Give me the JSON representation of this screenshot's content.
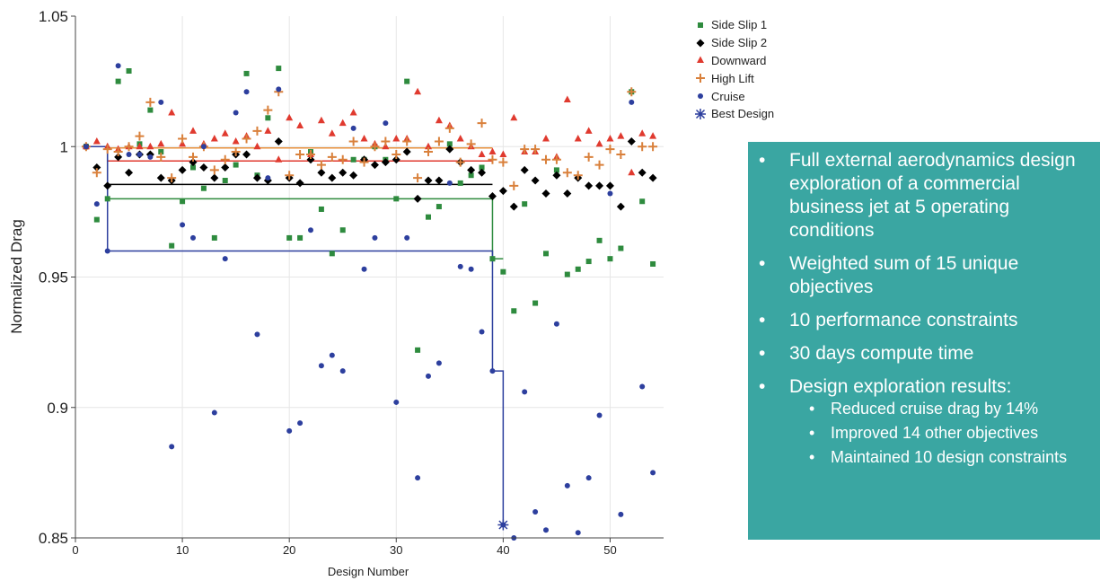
{
  "chart_data": {
    "type": "scatter",
    "xlabel": "Design Number",
    "ylabel": "Normalized Drag",
    "xlim": [
      0,
      55
    ],
    "ylim": [
      0.85,
      1.05
    ],
    "x_ticks": [
      "0",
      "10",
      "20",
      "30",
      "40",
      "50"
    ],
    "y_ticks": [
      "0.85",
      "0.9",
      "0.95",
      "1",
      "1.05"
    ],
    "grid": true,
    "legend_position": "top-right",
    "series": [
      {
        "name": "Side Slip 1",
        "marker": "square",
        "color": "#2e8b3e",
        "x": [
          1,
          2,
          3,
          4,
          5,
          6,
          7,
          8,
          9,
          10,
          11,
          12,
          13,
          14,
          15,
          16,
          17,
          18,
          19,
          20,
          21,
          22,
          23,
          24,
          25,
          26,
          27,
          28,
          29,
          30,
          31,
          32,
          33,
          34,
          35,
          36,
          37,
          38,
          39,
          40,
          41,
          42,
          43,
          44,
          45,
          46,
          47,
          48,
          49,
          50,
          51,
          52,
          53,
          54
        ],
        "y": [
          1.0,
          0.972,
          0.98,
          1.025,
          1.029,
          1.001,
          1.014,
          0.998,
          0.962,
          0.979,
          0.992,
          0.984,
          0.965,
          0.987,
          0.993,
          1.028,
          0.989,
          1.011,
          1.03,
          0.965,
          0.965,
          0.998,
          0.976,
          0.959,
          0.968,
          0.995,
          0.995,
          1.0,
          0.995,
          0.98,
          1.025,
          0.922,
          0.973,
          0.977,
          1.001,
          0.986,
          0.989,
          0.992,
          0.957,
          0.952,
          0.937,
          0.978,
          0.94,
          0.959,
          0.991,
          0.951,
          0.953,
          0.956,
          0.964,
          0.957,
          0.961,
          1.021,
          0.979,
          0.955
        ]
      },
      {
        "name": "Side Slip 2",
        "marker": "diamond",
        "color": "#000000",
        "x": [
          1,
          2,
          3,
          4,
          5,
          6,
          7,
          8,
          9,
          10,
          11,
          12,
          13,
          14,
          15,
          16,
          17,
          18,
          19,
          20,
          21,
          22,
          23,
          24,
          25,
          26,
          27,
          28,
          29,
          30,
          31,
          32,
          33,
          34,
          35,
          36,
          37,
          38,
          39,
          40,
          41,
          42,
          43,
          44,
          45,
          46,
          47,
          48,
          49,
          50,
          51,
          52,
          53,
          54
        ],
        "y": [
          1.0,
          0.992,
          0.985,
          0.996,
          0.99,
          0.997,
          0.997,
          0.988,
          0.987,
          0.991,
          0.994,
          0.992,
          0.988,
          0.992,
          0.997,
          0.997,
          0.988,
          0.987,
          1.002,
          0.988,
          0.986,
          0.995,
          0.99,
          0.988,
          0.99,
          0.989,
          0.995,
          0.993,
          0.994,
          0.995,
          0.998,
          0.98,
          0.987,
          0.987,
          0.999,
          0.994,
          0.991,
          0.99,
          0.981,
          0.983,
          0.977,
          0.991,
          0.987,
          0.982,
          0.989,
          0.982,
          0.988,
          0.985,
          0.985,
          0.985,
          0.977,
          1.002,
          0.99,
          0.988
        ]
      },
      {
        "name": "Downward",
        "marker": "triangle",
        "color": "#e03a2f",
        "x": [
          1,
          2,
          3,
          4,
          5,
          6,
          7,
          8,
          9,
          10,
          11,
          12,
          13,
          14,
          15,
          16,
          17,
          18,
          19,
          20,
          21,
          22,
          23,
          24,
          25,
          26,
          27,
          28,
          29,
          30,
          31,
          32,
          33,
          34,
          35,
          36,
          37,
          38,
          39,
          40,
          41,
          42,
          43,
          44,
          45,
          46,
          47,
          48,
          49,
          50,
          51,
          52,
          53,
          54
        ],
        "y": [
          1.0,
          1.002,
          1.0,
          0.999,
          1.0,
          1.0,
          1.0,
          1.001,
          1.013,
          1.001,
          1.006,
          1.001,
          1.003,
          1.005,
          1.002,
          1.004,
          1.0,
          1.006,
          0.995,
          1.011,
          1.008,
          0.997,
          1.01,
          1.005,
          1.009,
          1.013,
          1.003,
          1.001,
          1.0,
          1.003,
          1.003,
          1.021,
          1.0,
          1.01,
          1.008,
          1.003,
          1.0,
          0.997,
          0.998,
          0.997,
          1.011,
          0.998,
          0.998,
          1.003,
          0.996,
          1.018,
          1.003,
          1.006,
          1.001,
          1.003,
          1.004,
          0.99,
          1.005,
          1.004
        ]
      },
      {
        "name": "High Lift",
        "marker": "plus",
        "color": "#d9803b",
        "x": [
          1,
          2,
          3,
          4,
          5,
          6,
          7,
          8,
          9,
          10,
          11,
          12,
          13,
          14,
          15,
          16,
          17,
          18,
          19,
          20,
          21,
          22,
          23,
          24,
          25,
          26,
          27,
          28,
          29,
          30,
          31,
          32,
          33,
          34,
          35,
          36,
          37,
          38,
          39,
          40,
          41,
          42,
          43,
          44,
          45,
          46,
          47,
          48,
          49,
          50,
          51,
          52,
          53,
          54
        ],
        "y": [
          1.0,
          0.99,
          0.999,
          0.998,
          1.0,
          1.004,
          1.017,
          0.996,
          0.988,
          1.003,
          0.996,
          1.0,
          0.991,
          0.995,
          0.998,
          1.003,
          1.006,
          1.014,
          1.021,
          0.989,
          0.997,
          0.997,
          0.993,
          0.996,
          0.995,
          1.002,
          0.994,
          1.0,
          1.002,
          0.997,
          1.002,
          0.988,
          0.998,
          1.002,
          1.007,
          0.994,
          1.001,
          1.009,
          0.995,
          0.994,
          0.985,
          0.999,
          0.999,
          0.995,
          0.995,
          0.99,
          0.989,
          0.996,
          0.993,
          0.999,
          0.997,
          1.021,
          1.0,
          1.0
        ]
      },
      {
        "name": "Cruise",
        "marker": "circle",
        "color": "#2d3f9e",
        "x": [
          1,
          2,
          3,
          4,
          5,
          6,
          7,
          8,
          9,
          10,
          11,
          12,
          13,
          14,
          15,
          16,
          17,
          18,
          19,
          20,
          21,
          22,
          23,
          24,
          25,
          26,
          27,
          28,
          29,
          30,
          31,
          32,
          33,
          34,
          35,
          36,
          37,
          38,
          39,
          40,
          41,
          42,
          43,
          44,
          45,
          46,
          47,
          48,
          49,
          50,
          51,
          52,
          53,
          54
        ],
        "y": [
          1.0,
          0.978,
          0.96,
          1.031,
          0.997,
          0.997,
          0.996,
          1.017,
          0.885,
          0.97,
          0.965,
          1.0,
          0.898,
          0.957,
          1.013,
          1.021,
          0.928,
          0.988,
          1.022,
          0.891,
          0.894,
          0.968,
          0.916,
          0.92,
          0.914,
          1.007,
          0.953,
          0.965,
          1.009,
          0.902,
          0.965,
          0.873,
          0.912,
          0.917,
          0.986,
          0.954,
          0.953,
          0.929,
          0.914,
          0.855,
          0.85,
          0.906,
          0.86,
          0.853,
          0.932,
          0.87,
          0.852,
          0.873,
          0.897,
          0.982,
          0.859,
          1.017,
          0.908,
          0.875
        ]
      },
      {
        "name": "Best Design",
        "marker": "asterisk",
        "color": "#2d3f9e",
        "x": [
          40
        ],
        "y": [
          0.855
        ]
      }
    ],
    "progress_lines": [
      {
        "color": "#e8923f",
        "x": [
          1,
          3,
          39
        ],
        "y": [
          1.0,
          0.9995,
          0.9995
        ]
      },
      {
        "color": "#e03a2f",
        "x": [
          1,
          3,
          39
        ],
        "y": [
          1.0,
          0.9945,
          0.9945
        ]
      },
      {
        "color": "#000000",
        "x": [
          1,
          3,
          39
        ],
        "y": [
          1.0,
          0.9855,
          0.9855
        ]
      },
      {
        "color": "#2e8b3e",
        "x": [
          1,
          3,
          39,
          40
        ],
        "y": [
          1.0,
          0.98,
          0.957,
          0.957
        ]
      },
      {
        "color": "#2d3f9e",
        "x": [
          1,
          3,
          39,
          40
        ],
        "y": [
          1.0,
          0.96,
          0.914,
          0.855
        ]
      }
    ]
  },
  "legend": [
    {
      "label": "Side Slip 1",
      "marker": "square",
      "color": "#2e8b3e"
    },
    {
      "label": "Side Slip 2",
      "marker": "diamond",
      "color": "#000000"
    },
    {
      "label": "Downward",
      "marker": "triangle",
      "color": "#e03a2f"
    },
    {
      "label": "High Lift",
      "marker": "plus",
      "color": "#d9803b"
    },
    {
      "label": "Cruise",
      "marker": "circle",
      "color": "#2d3f9e"
    },
    {
      "label": "Best Design",
      "marker": "asterisk",
      "color": "#2d3f9e"
    }
  ],
  "info_box": {
    "color": "#3aa6a2",
    "bullets": [
      "Full external aerodynamics design exploration of a commercial business jet at 5 operating conditions",
      "Weighted sum of 15 unique objectives",
      "10 performance constraints",
      "30 days compute time",
      "Design exploration results:"
    ],
    "sub_bullets": [
      "Reduced cruise drag by 14%",
      "Improved 14 other objectives",
      "Maintained 10 design constraints"
    ]
  }
}
